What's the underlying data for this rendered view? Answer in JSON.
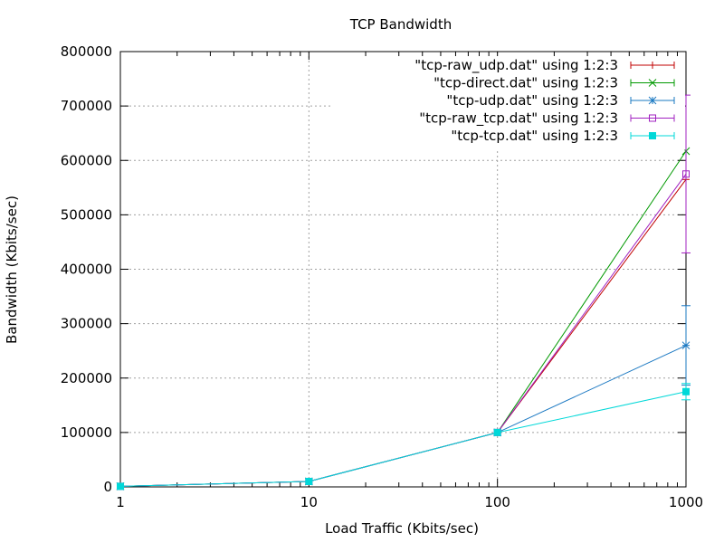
{
  "chart_data": {
    "type": "line",
    "title": "TCP Bandwidth",
    "xlabel": "Load Traffic (Kbits/sec)",
    "ylabel": "Bandwidth (Kbits/sec)",
    "x_scale": "log",
    "xlim": [
      1,
      1000
    ],
    "ylim": [
      0,
      800000
    ],
    "x_ticks": [
      {
        "value": 1,
        "label": "1"
      },
      {
        "value": 10,
        "label": "10"
      },
      {
        "value": 100,
        "label": "100"
      },
      {
        "value": 1000,
        "label": "1000"
      }
    ],
    "y_ticks": [
      {
        "value": 0,
        "label": "0"
      },
      {
        "value": 100000,
        "label": "100000"
      },
      {
        "value": 200000,
        "label": "200000"
      },
      {
        "value": 300000,
        "label": "300000"
      },
      {
        "value": 400000,
        "label": "400000"
      },
      {
        "value": 500000,
        "label": "500000"
      },
      {
        "value": 600000,
        "label": "600000"
      },
      {
        "value": 700000,
        "label": "700000"
      },
      {
        "value": 800000,
        "label": "800000"
      }
    ],
    "grid": true,
    "legend_position": "top-right",
    "series": [
      {
        "name": "\"tcp-raw_udp.dat\" using 1:2:3",
        "color": "#c00000",
        "marker": "plus",
        "x": [
          1,
          10,
          100,
          1000
        ],
        "y": [
          1000,
          10000,
          100000,
          565000
        ],
        "err": [
          0,
          0,
          0,
          0
        ]
      },
      {
        "name": "\"tcp-direct.dat\" using 1:2:3",
        "color": "#009900",
        "marker": "cross",
        "x": [
          1,
          10,
          100,
          1000
        ],
        "y": [
          1000,
          10000,
          100000,
          617000
        ],
        "err": [
          0,
          0,
          0,
          0
        ]
      },
      {
        "name": "\"tcp-udp.dat\" using 1:2:3",
        "color": "#1a78c2",
        "marker": "star",
        "x": [
          1,
          10,
          100,
          1000
        ],
        "y": [
          1000,
          10000,
          100000,
          260000
        ],
        "err": [
          0,
          0,
          0,
          73000
        ]
      },
      {
        "name": "\"tcp-raw_tcp.dat\" using 1:2:3",
        "color": "#a020c0",
        "marker": "square-open",
        "x": [
          1,
          10,
          100,
          1000
        ],
        "y": [
          1000,
          10000,
          100000,
          575000
        ],
        "err": [
          0,
          0,
          0,
          145000
        ]
      },
      {
        "name": "\"tcp-tcp.dat\" using 1:2:3",
        "color": "#00d8d8",
        "marker": "square-filled",
        "x": [
          1,
          10,
          100,
          1000
        ],
        "y": [
          1000,
          10000,
          100000,
          175000
        ],
        "err": [
          0,
          0,
          0,
          15000
        ]
      }
    ]
  }
}
